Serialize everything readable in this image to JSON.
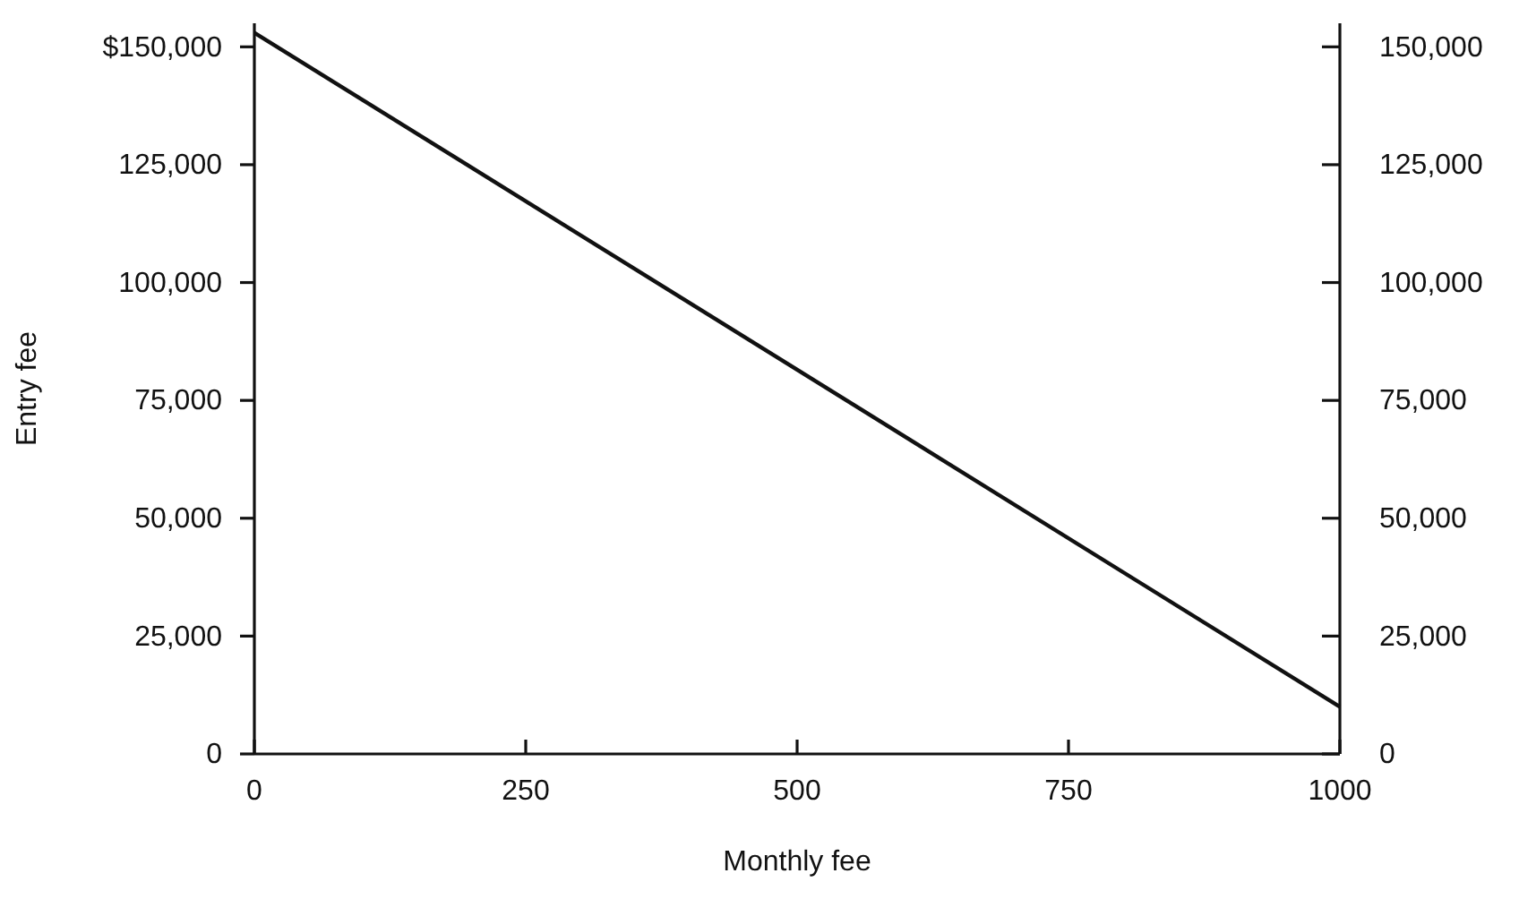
{
  "chart_data": {
    "type": "line",
    "xlabel": "Monthly fee",
    "ylabel": "Entry fee",
    "x": [
      0,
      1000
    ],
    "series": [
      {
        "color": "#111111",
        "values": [
          153000,
          10000
        ]
      }
    ],
    "xlim": [
      0,
      1000
    ],
    "xticks": [
      0,
      250,
      500,
      750,
      1000
    ],
    "ylim": [
      0,
      155000
    ],
    "yticks": [
      0,
      {
        "value": 25000,
        "label": "25,000"
      },
      {
        "value": 50000,
        "label": "50,000"
      },
      {
        "value": 75000,
        "label": "75,000"
      },
      {
        "value": 100000,
        "label": "100,000"
      },
      {
        "value": 125000,
        "label": "125,000"
      },
      {
        "value": 150000,
        "label": "$150,000"
      }
    ],
    "y2lim": [
      0,
      155000
    ],
    "y2ticks": [
      0,
      {
        "value": 25000,
        "label": "25,000"
      },
      {
        "value": 50000,
        "label": "50,000"
      },
      {
        "value": 75000,
        "label": "75,000"
      },
      {
        "value": 100000,
        "label": "100,000"
      },
      {
        "value": 125000,
        "label": "125,000"
      },
      {
        "value": 150000,
        "label": "150,000"
      }
    ],
    "marker": "none",
    "line_style": "solid"
  }
}
